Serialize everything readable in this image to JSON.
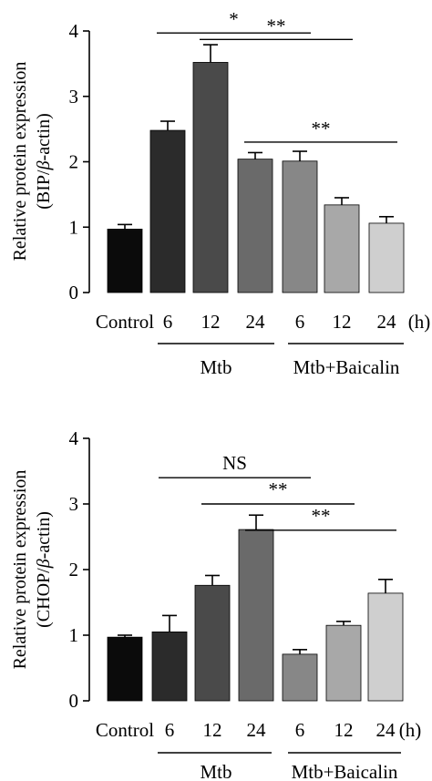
{
  "figure": {
    "panel_top": {
      "ylabel_line1": "Relative protein expression",
      "ylabel_line2_prefix": "(BIP/",
      "ylabel_line2_beta": "β",
      "ylabel_line2_suffix": "-actin)",
      "unit": "(h)",
      "group1": "Mtb",
      "group2": "Mtb+Baicalin"
    },
    "panel_bottom": {
      "ylabel_line1": "Relative protein expression",
      "ylabel_line2_prefix": "(CHOP/",
      "ylabel_line2_beta": "β",
      "ylabel_line2_suffix": "-actin)",
      "unit": "(h)",
      "group1": "Mtb",
      "group2": "Mtb+Baicalin"
    }
  },
  "chart_data": [
    {
      "type": "bar",
      "categories": [
        "Control",
        "6",
        "12",
        "24",
        "6",
        "12",
        "24"
      ],
      "values": [
        0.97,
        2.48,
        3.52,
        2.04,
        2.01,
        1.34,
        1.06
      ],
      "errors": [
        0.07,
        0.14,
        0.27,
        0.1,
        0.15,
        0.11,
        0.1
      ],
      "colors": [
        "#0b0b0b",
        "#2b2b2b",
        "#4a4a4a",
        "#6a6a6a",
        "#878787",
        "#a8a8a8",
        "#cfcfcf"
      ],
      "ylim": [
        0,
        4
      ],
      "yticks": [
        0,
        1,
        2,
        3,
        4
      ],
      "significance": [
        {
          "from": 1,
          "to": 4,
          "y": 3.97,
          "label": "*"
        },
        {
          "from": 2,
          "to": 5,
          "y": 3.87,
          "label": "**"
        },
        {
          "from": 3,
          "to": 6,
          "y": 2.3,
          "label": "**"
        }
      ]
    },
    {
      "type": "bar",
      "categories": [
        "Control",
        "6",
        "12",
        "24",
        "6",
        "12",
        "24"
      ],
      "values": [
        0.97,
        1.05,
        1.76,
        2.61,
        0.71,
        1.15,
        1.64
      ],
      "errors": [
        0.03,
        0.25,
        0.15,
        0.22,
        0.07,
        0.06,
        0.21
      ],
      "colors": [
        "#0b0b0b",
        "#2b2b2b",
        "#4a4a4a",
        "#6a6a6a",
        "#878787",
        "#a8a8a8",
        "#cfcfcf"
      ],
      "ylim": [
        0,
        4
      ],
      "yticks": [
        0,
        1,
        2,
        3,
        4
      ],
      "significance": [
        {
          "from": 1,
          "to": 4,
          "y": 3.4,
          "label": "NS"
        },
        {
          "from": 2,
          "to": 5,
          "y": 3.0,
          "label": "**"
        },
        {
          "from": 3,
          "to": 6,
          "y": 2.6,
          "label": "**"
        }
      ]
    }
  ]
}
